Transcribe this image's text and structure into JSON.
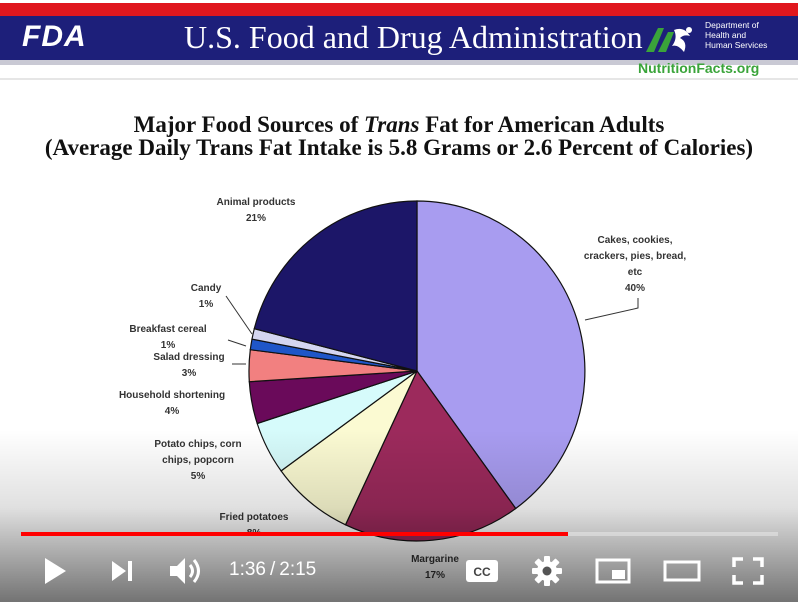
{
  "header": {
    "logo": "FDA",
    "agency": "U.S. Food and Drug Administration",
    "hhs_lines": [
      "Department of",
      "Health and",
      "Human Services"
    ],
    "url": "NutritionFacts.org"
  },
  "slide": {
    "title_line1_pre": "Major Food Sources of ",
    "title_line1_em": "Trans",
    "title_line1_post": " Fat for American Adults",
    "title_line2": "(Average Daily Trans Fat Intake is 5.8 Grams or 2.6 Percent of Calories)"
  },
  "chart_data": {
    "type": "pie",
    "title": "Major Food Sources of Trans Fat for American Adults",
    "subtitle": "(Average Daily Trans Fat Intake is 5.8 Grams or 2.6 Percent of Calories)",
    "slices": [
      {
        "label": "Cakes, cookies, crackers, pies, bread, etc",
        "lines": [
          "Cakes, cookies,",
          "crackers, pies, bread,",
          "etc"
        ],
        "value": 40,
        "pct": "40%",
        "color": "#a89cf0"
      },
      {
        "label": "Margarine",
        "lines": [
          "Margarine"
        ],
        "value": 17,
        "pct": "17%",
        "color": "#9c2a5c"
      },
      {
        "label": "Fried potatoes",
        "lines": [
          "Fried potatoes"
        ],
        "value": 8,
        "pct": "8%",
        "color": "#fbfad2"
      },
      {
        "label": "Potato chips, corn chips, popcorn",
        "lines": [
          "Potato chips, corn",
          "chips, popcorn"
        ],
        "value": 5,
        "pct": "5%",
        "color": "#d6fbfb"
      },
      {
        "label": "Household shortening",
        "lines": [
          "Household shortening"
        ],
        "value": 4,
        "pct": "4%",
        "color": "#6a0a5a"
      },
      {
        "label": "Salad dressing",
        "lines": [
          "Salad dressing"
        ],
        "value": 3,
        "pct": "3%",
        "color": "#f28080"
      },
      {
        "label": "Breakfast cereal",
        "lines": [
          "Breakfast cereal"
        ],
        "value": 1,
        "pct": "1%",
        "color": "#1f56c8"
      },
      {
        "label": "Candy",
        "lines": [
          "Candy"
        ],
        "value": 1,
        "pct": "1%",
        "color": "#d4d6f0"
      },
      {
        "label": "Animal products",
        "lines": [
          "Animal products"
        ],
        "value": 21,
        "pct": "21%",
        "color": "#1c1668"
      }
    ]
  },
  "player": {
    "played_fraction": 0.722,
    "loaded_fraction": 0.722,
    "time_current": "1:36",
    "time_separator": "/",
    "time_total": "2:15",
    "icons": [
      "play-icon",
      "next-icon",
      "volume-icon",
      "captions-icon",
      "settings-icon",
      "miniplayer-icon",
      "theater-icon",
      "fullscreen-icon"
    ],
    "accent_color": "#ff0000"
  }
}
